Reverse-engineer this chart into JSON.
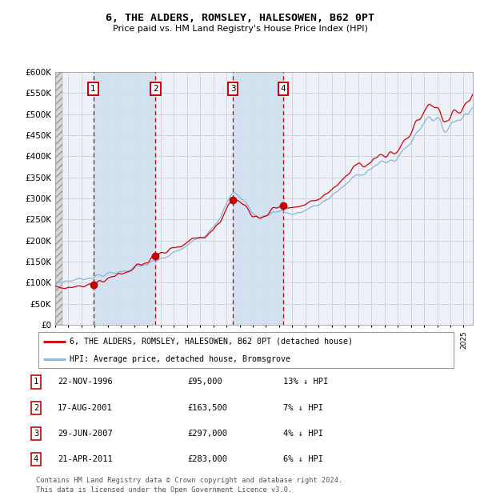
{
  "title": "6, THE ALDERS, ROMSLEY, HALESOWEN, B62 0PT",
  "subtitle": "Price paid vs. HM Land Registry's House Price Index (HPI)",
  "bg_color": "#ffffff",
  "plot_bg_color": "#eef2f8",
  "grid_color": "#c8d0dc",
  "hpi_line_color": "#8ab4d8",
  "price_line_color": "#cc0000",
  "sale_marker_color": "#cc0000",
  "sale_vline_color": "#cc0000",
  "shade_color": "#d0dff0",
  "ylim": [
    0,
    600000
  ],
  "yticks": [
    0,
    50000,
    100000,
    150000,
    200000,
    250000,
    300000,
    350000,
    400000,
    450000,
    500000,
    550000,
    600000
  ],
  "ytick_labels": [
    "£0",
    "£50K",
    "£100K",
    "£150K",
    "£200K",
    "£250K",
    "£300K",
    "£350K",
    "£400K",
    "£450K",
    "£500K",
    "£550K",
    "£600K"
  ],
  "xlim_start": 1994.0,
  "xlim_end": 2025.7,
  "sale_dates": [
    1996.89,
    2001.62,
    2007.49,
    2011.3
  ],
  "sale_prices": [
    95000,
    163500,
    297000,
    283000
  ],
  "sale_labels": [
    "1",
    "2",
    "3",
    "4"
  ],
  "footer": "Contains HM Land Registry data © Crown copyright and database right 2024.\nThis data is licensed under the Open Government Licence v3.0.",
  "legend_line1": "6, THE ALDERS, ROMSLEY, HALESOWEN, B62 0PT (detached house)",
  "legend_line2": "HPI: Average price, detached house, Bromsgrove",
  "table_data": [
    [
      "1",
      "22-NOV-1996",
      "£95,000",
      "13% ↓ HPI"
    ],
    [
      "2",
      "17-AUG-2001",
      "£163,500",
      "7% ↓ HPI"
    ],
    [
      "3",
      "29-JUN-2007",
      "£297,000",
      "4% ↓ HPI"
    ],
    [
      "4",
      "21-APR-2011",
      "£283,000",
      "6% ↓ HPI"
    ]
  ]
}
